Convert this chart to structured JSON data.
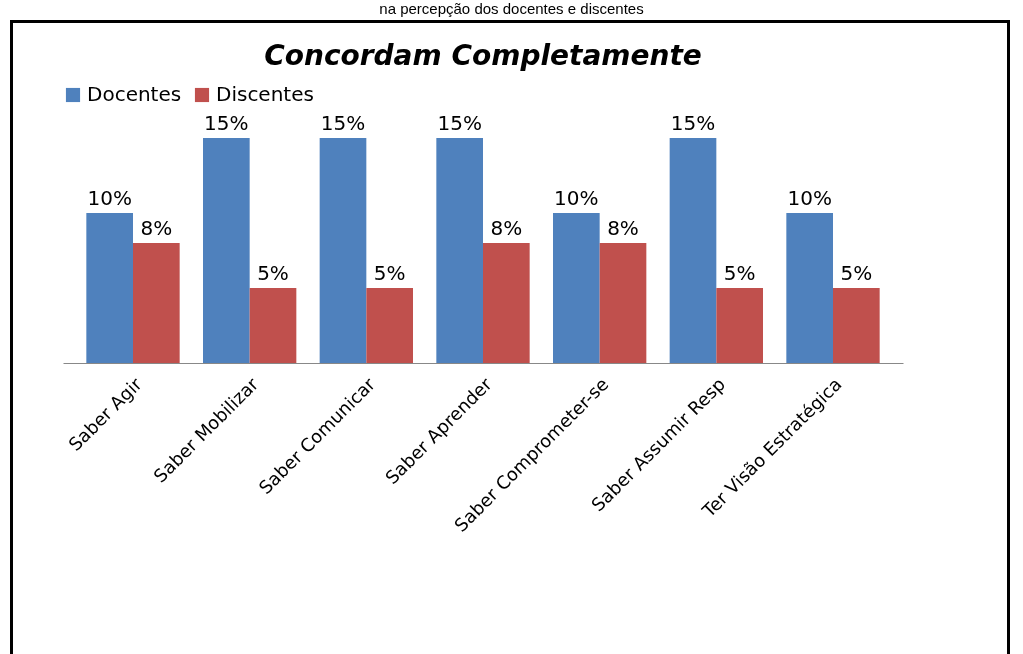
{
  "chart_data": {
    "type": "bar",
    "title": "Concordam Completamente",
    "annotations": [
      "na percepção dos docentes e discentes"
    ],
    "categories": [
      "Saber Agir",
      "Saber Mobilizar",
      "Saber Comunicar",
      "Saber Aprender",
      "Saber Comprometer-se",
      "Saber Assumir Resp",
      "Ter Visão Estratégica"
    ],
    "series": [
      {
        "name": "Docentes",
        "color": "#4f81bd",
        "values": [
          10,
          15,
          15,
          15,
          10,
          15,
          10
        ],
        "value_labels": [
          "10%",
          "15%",
          "15%",
          "15%",
          "10%",
          "15%",
          "10%"
        ]
      },
      {
        "name": "Discentes",
        "color": "#c0504d",
        "values": [
          8,
          5,
          5,
          8,
          8,
          5,
          5
        ],
        "value_labels": [
          "8%",
          "5%",
          "5%",
          "8%",
          "8%",
          "5%",
          "5%"
        ]
      }
    ],
    "legend": "top",
    "grid": false
  }
}
